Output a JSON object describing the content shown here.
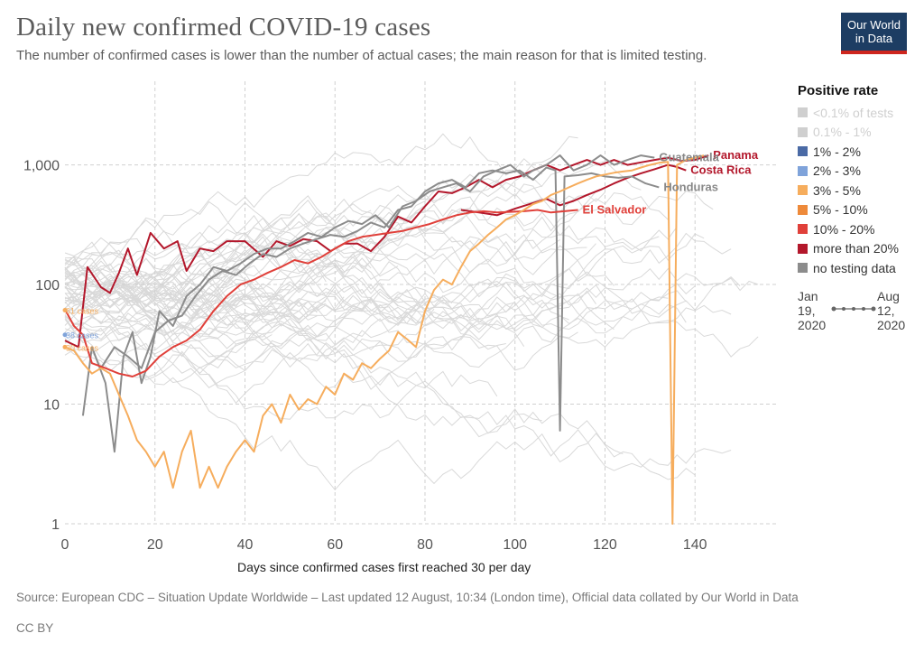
{
  "header": {
    "title": "Daily new confirmed COVID-19 cases",
    "subtitle": "The number of confirmed cases is lower than the number of actual cases; the main reason for that is limited testing."
  },
  "logo": {
    "line1": "Our World",
    "line2": "in Data",
    "bg": "#1d3d63",
    "accent": "#ce261e"
  },
  "legend": {
    "title": "Positive rate",
    "items": [
      {
        "label": "<0.1% of tests",
        "color": "#cfcfcf",
        "faded": true
      },
      {
        "label": "0.1% - 1%",
        "color": "#cfcfcf",
        "faded": true
      },
      {
        "label": "1% - 2%",
        "color": "#4a6aa5"
      },
      {
        "label": "2% - 3%",
        "color": "#7fa3da"
      },
      {
        "label": "3% - 5%",
        "color": "#f6ad5d"
      },
      {
        "label": "5% - 10%",
        "color": "#ee8a3a"
      },
      {
        "label": "10% - 20%",
        "color": "#e0403a"
      },
      {
        "label": "more than 20%",
        "color": "#b3172b"
      },
      {
        "label": "no testing data",
        "color": "#8c8c8c"
      }
    ]
  },
  "timeline": {
    "start": "Jan 19, 2020",
    "end": "Aug 12, 2020"
  },
  "xlabel": "Days since confirmed cases first reached 30 per day",
  "source": "Source: European CDC – Situation Update Worldwide – Last updated 12 August, 10:34 (London time), Official data collated by Our World in Data",
  "license": "CC BY",
  "chart_data": {
    "type": "line",
    "x_scale": "linear",
    "y_scale": "log",
    "xlim": [
      0,
      158
    ],
    "ylim": [
      1,
      5000
    ],
    "x_ticks": [
      "0",
      "20",
      "40",
      "60",
      "80",
      "100",
      "120",
      "140"
    ],
    "x_tick_values": [
      0,
      20,
      40,
      60,
      80,
      100,
      120,
      140
    ],
    "y_ticks": [
      "1",
      "10",
      "100",
      "1,000"
    ],
    "y_tick_values": [
      1,
      10,
      100,
      1000
    ],
    "grid": true,
    "legend_position": "right",
    "start_labels": [
      {
        "text": "61 cases",
        "value": 61,
        "color": "#f6ad5d"
      },
      {
        "text": "38 cases",
        "value": 38,
        "color": "#7fa3da"
      },
      {
        "text": "30 cases",
        "value": 30,
        "color": "#f6ad5d"
      }
    ],
    "series": [
      {
        "name": "Panama",
        "color": "#b3172b",
        "label_color": "#b3172b",
        "points": [
          [
            0,
            34
          ],
          [
            3,
            30
          ],
          [
            5,
            140
          ],
          [
            8,
            95
          ],
          [
            10,
            85
          ],
          [
            12,
            125
          ],
          [
            14,
            200
          ],
          [
            16,
            120
          ],
          [
            19,
            270
          ],
          [
            22,
            200
          ],
          [
            25,
            230
          ],
          [
            27,
            130
          ],
          [
            30,
            200
          ],
          [
            33,
            190
          ],
          [
            36,
            230
          ],
          [
            40,
            230
          ],
          [
            44,
            170
          ],
          [
            47,
            230
          ],
          [
            50,
            210
          ],
          [
            53,
            240
          ],
          [
            56,
            230
          ],
          [
            59,
            190
          ],
          [
            62,
            220
          ],
          [
            65,
            220
          ],
          [
            68,
            190
          ],
          [
            71,
            250
          ],
          [
            74,
            370
          ],
          [
            77,
            330
          ],
          [
            80,
            450
          ],
          [
            83,
            600
          ],
          [
            86,
            580
          ],
          [
            89,
            650
          ],
          [
            92,
            750
          ],
          [
            95,
            650
          ],
          [
            98,
            750
          ],
          [
            101,
            800
          ],
          [
            104,
            900
          ],
          [
            107,
            1000
          ],
          [
            110,
            900
          ],
          [
            113,
            1000
          ],
          [
            116,
            1100
          ],
          [
            119,
            1000
          ],
          [
            122,
            1100
          ],
          [
            125,
            1000
          ],
          [
            128,
            1050
          ],
          [
            131,
            1100
          ],
          [
            134,
            1150
          ],
          [
            137,
            1080
          ],
          [
            140,
            1100
          ],
          [
            143,
            1200
          ]
        ]
      },
      {
        "name": "Guatemala",
        "color": "#8c8c8c",
        "label_color": "#888888",
        "points": [
          [
            4,
            8
          ],
          [
            6,
            30
          ],
          [
            9,
            15
          ],
          [
            11,
            4
          ],
          [
            13,
            25
          ],
          [
            15,
            40
          ],
          [
            17,
            15
          ],
          [
            19,
            25
          ],
          [
            21,
            60
          ],
          [
            24,
            45
          ],
          [
            27,
            80
          ],
          [
            30,
            100
          ],
          [
            33,
            140
          ],
          [
            36,
            130
          ],
          [
            39,
            150
          ],
          [
            42,
            180
          ],
          [
            45,
            200
          ],
          [
            48,
            200
          ],
          [
            51,
            230
          ],
          [
            54,
            270
          ],
          [
            57,
            250
          ],
          [
            60,
            300
          ],
          [
            63,
            340
          ],
          [
            66,
            320
          ],
          [
            69,
            380
          ],
          [
            72,
            300
          ],
          [
            75,
            450
          ],
          [
            78,
            500
          ],
          [
            81,
            600
          ],
          [
            84,
            650
          ],
          [
            87,
            700
          ],
          [
            90,
            600
          ],
          [
            93,
            800
          ],
          [
            96,
            900
          ],
          [
            99,
            1000
          ],
          [
            102,
            800
          ],
          [
            104,
            900
          ],
          [
            107,
            1000
          ],
          [
            110,
            1200
          ],
          [
            113,
            900
          ],
          [
            116,
            1000
          ],
          [
            119,
            1200
          ],
          [
            122,
            1000
          ],
          [
            125,
            1100
          ],
          [
            128,
            1200
          ],
          [
            131,
            1150
          ]
        ]
      },
      {
        "name": "Costa Rica",
        "color": "#b3172b",
        "label_color": "#b3172b",
        "points": [
          [
            88,
            420
          ],
          [
            92,
            400
          ],
          [
            96,
            380
          ],
          [
            100,
            430
          ],
          [
            104,
            480
          ],
          [
            107,
            520
          ],
          [
            110,
            460
          ],
          [
            113,
            500
          ],
          [
            116,
            560
          ],
          [
            119,
            620
          ],
          [
            122,
            700
          ],
          [
            125,
            780
          ],
          [
            128,
            850
          ],
          [
            131,
            920
          ],
          [
            134,
            1000
          ],
          [
            136,
            960
          ],
          [
            138,
            900
          ]
        ]
      },
      {
        "name": "Honduras",
        "color": "#8c8c8c",
        "label_color": "#888888",
        "points": [
          [
            8,
            20
          ],
          [
            11,
            30
          ],
          [
            14,
            25
          ],
          [
            17,
            20
          ],
          [
            20,
            40
          ],
          [
            23,
            50
          ],
          [
            26,
            55
          ],
          [
            29,
            80
          ],
          [
            32,
            110
          ],
          [
            35,
            130
          ],
          [
            38,
            120
          ],
          [
            41,
            150
          ],
          [
            44,
            180
          ],
          [
            47,
            170
          ],
          [
            50,
            200
          ],
          [
            53,
            220
          ],
          [
            56,
            240
          ],
          [
            59,
            260
          ],
          [
            62,
            250
          ],
          [
            65,
            280
          ],
          [
            68,
            330
          ],
          [
            71,
            300
          ],
          [
            74,
            420
          ],
          [
            77,
            450
          ],
          [
            80,
            600
          ],
          [
            83,
            700
          ],
          [
            86,
            750
          ],
          [
            89,
            650
          ],
          [
            92,
            850
          ],
          [
            95,
            900
          ],
          [
            98,
            850
          ],
          [
            101,
            900
          ],
          [
            104,
            750
          ],
          [
            107,
            950
          ],
          [
            109,
            900
          ],
          [
            110,
            6
          ],
          [
            111,
            800
          ],
          [
            114,
            820
          ],
          [
            117,
            850
          ],
          [
            120,
            800
          ],
          [
            123,
            780
          ],
          [
            126,
            800
          ],
          [
            129,
            700
          ],
          [
            132,
            650
          ]
        ]
      },
      {
        "name": "El Salvador",
        "color": "#e0403a",
        "label_color": "#e0403a",
        "points": [
          [
            0,
            62
          ],
          [
            2,
            45
          ],
          [
            4,
            38
          ],
          [
            6,
            22
          ],
          [
            9,
            20
          ],
          [
            12,
            18
          ],
          [
            15,
            17
          ],
          [
            18,
            19
          ],
          [
            21,
            25
          ],
          [
            24,
            30
          ],
          [
            27,
            34
          ],
          [
            30,
            42
          ],
          [
            33,
            60
          ],
          [
            36,
            80
          ],
          [
            39,
            100
          ],
          [
            42,
            110
          ],
          [
            45,
            125
          ],
          [
            48,
            140
          ],
          [
            51,
            160
          ],
          [
            54,
            150
          ],
          [
            57,
            170
          ],
          [
            60,
            200
          ],
          [
            63,
            230
          ],
          [
            66,
            250
          ],
          [
            69,
            260
          ],
          [
            72,
            270
          ],
          [
            75,
            280
          ],
          [
            78,
            300
          ],
          [
            81,
            320
          ],
          [
            84,
            350
          ],
          [
            87,
            380
          ],
          [
            90,
            400
          ],
          [
            93,
            410
          ],
          [
            96,
            400
          ],
          [
            99,
            405
          ],
          [
            102,
            410
          ],
          [
            105,
            420
          ],
          [
            108,
            400
          ],
          [
            111,
            410
          ],
          [
            114,
            420
          ]
        ]
      },
      {
        "name": "",
        "color": "#f6ad5d",
        "label_color": "#f6ad5d",
        "points": [
          [
            0,
            30
          ],
          [
            2,
            28
          ],
          [
            4,
            22
          ],
          [
            6,
            18
          ],
          [
            8,
            20
          ],
          [
            10,
            18
          ],
          [
            12,
            12
          ],
          [
            14,
            8
          ],
          [
            16,
            5
          ],
          [
            18,
            4
          ],
          [
            20,
            3
          ],
          [
            22,
            4
          ],
          [
            24,
            2
          ],
          [
            26,
            4
          ],
          [
            28,
            6
          ],
          [
            30,
            2
          ],
          [
            32,
            3
          ],
          [
            34,
            2
          ],
          [
            36,
            3
          ],
          [
            38,
            4
          ],
          [
            40,
            5
          ],
          [
            42,
            4
          ],
          [
            44,
            8
          ],
          [
            46,
            10
          ],
          [
            48,
            7
          ],
          [
            50,
            12
          ],
          [
            52,
            9
          ],
          [
            54,
            11
          ],
          [
            56,
            10
          ],
          [
            58,
            14
          ],
          [
            60,
            12
          ],
          [
            62,
            18
          ],
          [
            64,
            16
          ],
          [
            66,
            22
          ],
          [
            68,
            20
          ],
          [
            70,
            24
          ],
          [
            72,
            28
          ],
          [
            74,
            40
          ],
          [
            76,
            35
          ],
          [
            78,
            30
          ],
          [
            80,
            60
          ],
          [
            82,
            90
          ],
          [
            84,
            110
          ],
          [
            86,
            100
          ],
          [
            88,
            140
          ],
          [
            90,
            190
          ],
          [
            92,
            220
          ],
          [
            94,
            260
          ],
          [
            96,
            300
          ],
          [
            98,
            350
          ],
          [
            100,
            380
          ],
          [
            102,
            420
          ],
          [
            104,
            470
          ],
          [
            106,
            500
          ],
          [
            108,
            560
          ],
          [
            110,
            600
          ],
          [
            112,
            650
          ],
          [
            114,
            700
          ],
          [
            116,
            750
          ],
          [
            118,
            800
          ],
          [
            120,
            830
          ],
          [
            122,
            860
          ],
          [
            124,
            880
          ],
          [
            126,
            900
          ],
          [
            128,
            950
          ],
          [
            130,
            1000
          ],
          [
            132,
            1040
          ],
          [
            134,
            1060
          ],
          [
            135,
            1
          ],
          [
            136,
            1000
          ],
          [
            138,
            1100
          ],
          [
            140,
            1150
          ],
          [
            142,
            1200
          ]
        ]
      }
    ]
  }
}
